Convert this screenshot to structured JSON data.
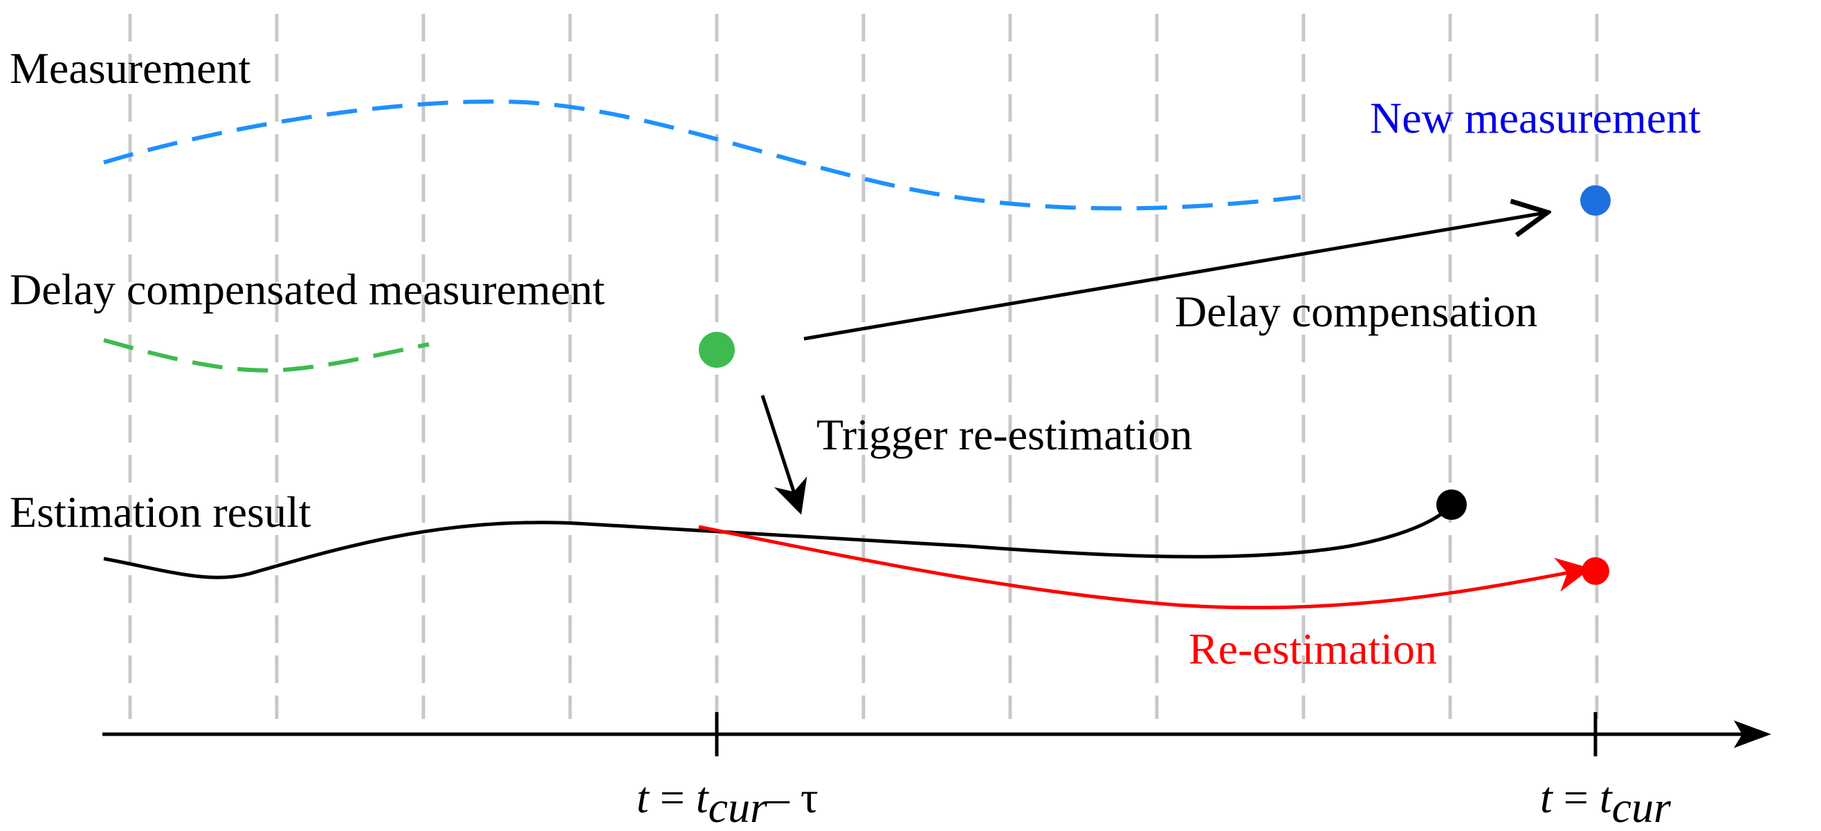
{
  "labels": {
    "measurement": "Measurement",
    "new_measurement": "New measurement",
    "delay_compensated": "Delay compensated measurement",
    "delay_compensation": "Delay compensation",
    "trigger": "Trigger re-estimation",
    "estimation_result": "Estimation result",
    "re_estimation": "Re-estimation"
  },
  "axis": {
    "tick1_t": "t",
    "tick1_eq": " = ",
    "tick1_tsym": "t",
    "tick1_sub": "cur",
    "tick1_minus": "– τ",
    "tick2_t": "t",
    "tick2_eq": " = ",
    "tick2_tsym": "t",
    "tick2_sub": "cur"
  },
  "colors": {
    "measurement": "#1e90ff",
    "new_measurement_text": "#0000e6",
    "new_measurement_dot": "#1e6fe0",
    "compensated": "#3dbb4f",
    "estimation": "#000000",
    "re_estimation": "#ff0000",
    "grid": "#c8c8c8"
  }
}
